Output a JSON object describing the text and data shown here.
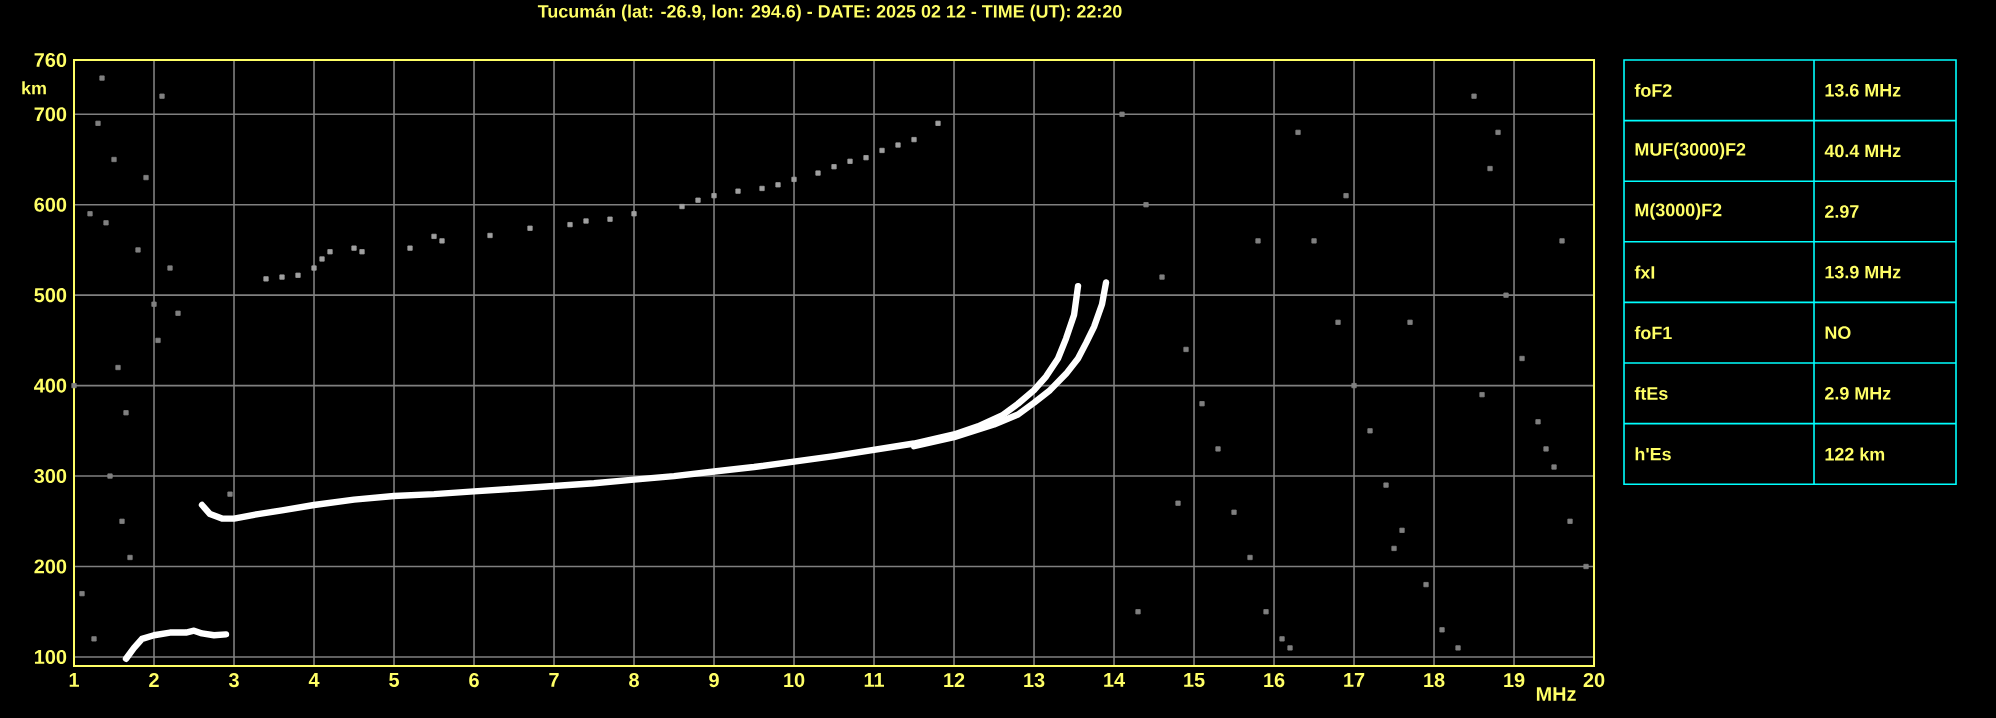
{
  "chart_data": {
    "type": "line",
    "title": "Tucumán (lat: -26.9, lon: 294.6) - DATE: 2025 02 12 - TIME (UT): 22:20",
    "xlabel": "MHz",
    "ylabel": "km",
    "xlim": [
      1,
      20
    ],
    "ylim": [
      90,
      760
    ],
    "xticks": [
      1,
      2,
      3,
      4,
      5,
      6,
      7,
      8,
      9,
      10,
      11,
      12,
      13,
      14,
      15,
      16,
      17,
      18,
      19,
      20
    ],
    "yticks": [
      100,
      200,
      300,
      400,
      500,
      600,
      700,
      760
    ],
    "grid": true,
    "series": [
      {
        "color": "#ffffff",
        "x": [
          2.6,
          2.7,
          2.85,
          3.0,
          3.3,
          3.6,
          4.0,
          4.5,
          5.0,
          5.5,
          6.0,
          6.5,
          7.0,
          7.5,
          8.0,
          8.5,
          9.0,
          9.5,
          10.0,
          10.5,
          11.0,
          11.5,
          12.0,
          12.3,
          12.6,
          12.8,
          13.0,
          13.15,
          13.3,
          13.4,
          13.5,
          13.55
        ],
        "values": [
          268,
          258,
          253,
          253,
          258,
          262,
          268,
          274,
          278,
          280,
          283,
          286,
          289,
          292,
          296,
          300,
          305,
          310,
          316,
          322,
          329,
          336,
          346,
          355,
          367,
          380,
          395,
          410,
          430,
          452,
          478,
          510
        ]
      },
      {
        "color": "#ffffff",
        "x": [
          11.5,
          12.0,
          12.5,
          12.8,
          13.0,
          13.2,
          13.4,
          13.55,
          13.65,
          13.75,
          13.85,
          13.9
        ],
        "values": [
          333,
          343,
          357,
          368,
          381,
          395,
          413,
          430,
          447,
          465,
          490,
          514
        ]
      },
      {
        "color": "#ffffff",
        "x": [
          1.65,
          1.75,
          1.85,
          2.0,
          2.2,
          2.4,
          2.5,
          2.6,
          2.75,
          2.9
        ],
        "values": [
          98,
          110,
          120,
          124,
          127,
          127,
          129,
          126,
          124,
          125
        ]
      },
      {
        "type": "scatter",
        "marker": "square",
        "color": "#a0a0a0",
        "x": [
          3.4,
          3.6,
          3.8,
          4.0,
          4.1,
          4.2,
          4.5,
          4.6,
          5.2,
          5.5,
          5.6,
          6.2,
          6.7,
          7.2,
          7.4,
          7.7,
          8.0,
          8.6,
          8.8,
          9.0,
          9.3,
          9.6,
          9.8,
          10.0,
          10.3,
          10.5,
          10.7,
          10.9,
          11.1,
          11.3,
          11.5,
          11.8
        ],
        "values": [
          518,
          520,
          522,
          530,
          540,
          548,
          552,
          548,
          552,
          565,
          560,
          566,
          574,
          578,
          582,
          584,
          590,
          598,
          605,
          610,
          615,
          618,
          622,
          628,
          635,
          642,
          648,
          652,
          660,
          666,
          672,
          690
        ]
      },
      {
        "type": "scatter",
        "marker": "square",
        "color": "#808080",
        "x": [
          1.0,
          1.1,
          1.2,
          1.3,
          1.35,
          1.4,
          1.5,
          1.55,
          1.6,
          1.7,
          1.8,
          1.9,
          2.0,
          2.05,
          2.1,
          2.2,
          2.3,
          1.25,
          1.45,
          1.65,
          2.95,
          14.1,
          14.4,
          14.6,
          14.9,
          15.1,
          15.3,
          15.5,
          15.7,
          15.9,
          16.1,
          16.3,
          16.5,
          16.8,
          17.0,
          17.2,
          17.4,
          17.6,
          17.9,
          18.1,
          18.3,
          18.5,
          18.7,
          18.9,
          19.1,
          19.3,
          19.5,
          19.7,
          19.9,
          14.3,
          15.8,
          16.9,
          17.7,
          18.6,
          19.4,
          14.8,
          16.2,
          17.5,
          18.8,
          19.6
        ],
        "values": [
          400,
          170,
          590,
          690,
          740,
          580,
          650,
          420,
          250,
          210,
          550,
          630,
          490,
          450,
          720,
          530,
          480,
          120,
          300,
          370,
          280,
          700,
          600,
          520,
          440,
          380,
          330,
          260,
          210,
          150,
          120,
          680,
          560,
          470,
          400,
          350,
          290,
          240,
          180,
          130,
          110,
          720,
          640,
          500,
          430,
          360,
          310,
          250,
          200,
          150,
          560,
          610,
          470,
          390,
          330,
          270,
          110,
          220,
          680,
          560
        ]
      }
    ],
    "annotations": [
      "foF2",
      "13.6 MHz",
      "MUF(3000)F2",
      "40.4 MHz",
      "M(3000)F2",
      "2.97",
      "fxI",
      "13.9 MHz",
      "foF1",
      "NO",
      "ftEs",
      "2.9 MHz",
      "h'Es",
      "122 km"
    ]
  }
}
